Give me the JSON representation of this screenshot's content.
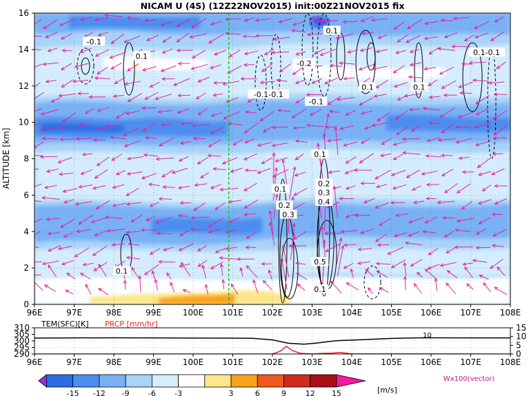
{
  "title": "NICAM U (4S) (12Z22NOV2015) init:00Z21NOV2015 fix",
  "chart_data": [
    {
      "type": "heatmap",
      "title": "NICAM U (4S) (12Z22NOV2015) init:00Z21NOV2015 fix",
      "xlabel": "",
      "ylabel": "ALTITUDE [km]",
      "x_ticks": [
        "96E",
        "97E",
        "98E",
        "99E",
        "100E",
        "101E",
        "102E",
        "103E",
        "104E",
        "105E",
        "106E",
        "107E",
        "108E"
      ],
      "x_range": [
        96,
        108
      ],
      "y_ticks": [
        0,
        2,
        4,
        6,
        8,
        10,
        12,
        14,
        16
      ],
      "y_range": [
        0,
        16
      ],
      "reference_line_x": 100.9,
      "contour_labels": [
        {
          "text": "-0.1",
          "x": 97.5,
          "y": 14.4
        },
        {
          "text": "0.1",
          "x": 98.7,
          "y": 13.6
        },
        {
          "text": "-0.2",
          "x": 102.8,
          "y": 13.2
        },
        {
          "text": "0.1",
          "x": 103.5,
          "y": 15.0
        },
        {
          "text": "0.1",
          "x": 104.4,
          "y": 11.9
        },
        {
          "text": "0.1",
          "x": 105.7,
          "y": 11.9
        },
        {
          "text": "0.1-0.1",
          "x": 107.4,
          "y": 13.8
        },
        {
          "text": "-0.1-0.1",
          "x": 101.9,
          "y": 11.5
        },
        {
          "text": "-0.1",
          "x": 103.1,
          "y": 11.1
        },
        {
          "text": "0.1",
          "x": 103.2,
          "y": 8.2
        },
        {
          "text": "0.2",
          "x": 103.3,
          "y": 6.6
        },
        {
          "text": "0.3",
          "x": 103.3,
          "y": 6.1
        },
        {
          "text": "0.4",
          "x": 103.3,
          "y": 5.6
        },
        {
          "text": "0.1",
          "x": 102.2,
          "y": 6.3
        },
        {
          "text": "0.2",
          "x": 102.3,
          "y": 5.4
        },
        {
          "text": "0.3",
          "x": 102.4,
          "y": 4.9
        },
        {
          "text": "0.1",
          "x": 98.2,
          "y": 1.8
        },
        {
          "text": "0.5",
          "x": 103.2,
          "y": 2.3
        },
        {
          "text": "0.1",
          "x": 103.2,
          "y": 0.8
        }
      ],
      "colorbar": {
        "ticks": [
          "-15",
          "-12",
          "-9",
          "-6",
          "-3",
          "3",
          "6",
          "9",
          "12",
          "15"
        ],
        "colors": [
          "#9b2fdc",
          "#2b6de6",
          "#4d8df0",
          "#79b1f4",
          "#a9d3f8",
          "#d4ecfb",
          "#ffffff",
          "#fde68a",
          "#f9a21b",
          "#ee5a1d",
          "#d12a1f",
          "#ab0d16",
          "#f21d9c"
        ],
        "units": "[m/s]"
      },
      "vector_label": "Wx100(vector)",
      "vector_color": "#e0249e",
      "grid": true
    },
    {
      "type": "line",
      "x_ticks": [
        "96E",
        "97E",
        "98E",
        "99E",
        "100E",
        "101E",
        "102E",
        "103E",
        "104E",
        "105E",
        "106E",
        "107E",
        "108E"
      ],
      "x_range": [
        96,
        108
      ],
      "left_axis_label": "TEM(SFC)[K]",
      "left_ticks": [
        "310",
        "305",
        "300",
        "295",
        "290"
      ],
      "left_range": [
        290,
        310
      ],
      "right_axis_label": "PRCP [mm/hr]",
      "right_ticks": [
        "15",
        "10",
        "5",
        "0"
      ],
      "right_range": [
        0,
        15
      ],
      "curve_label": "10",
      "series": [
        {
          "name": "TEM(SFC)[K]",
          "color": "#000000",
          "x": [
            96,
            97,
            98,
            99,
            100,
            101,
            101.5,
            102,
            102.4,
            102.8,
            103.1,
            103.6,
            104,
            104.6,
            105,
            105.6,
            106,
            107,
            108
          ],
          "y": [
            302.2,
            302.3,
            302.4,
            302.3,
            302.2,
            302.1,
            302.0,
            300.8,
            298.2,
            297.5,
            298.3,
            300.1,
            300.6,
            301.4,
            301.9,
            302.3,
            302.4,
            302.3,
            302.3
          ]
        },
        {
          "name": "PRCP [mm/hr]",
          "color": "#e8251b",
          "x": [
            96,
            101,
            102.0,
            102.2,
            102.35,
            102.5,
            102.7,
            103.0,
            103.2,
            103.5,
            103.7,
            104.0,
            108
          ],
          "y": [
            0,
            0,
            0.0,
            1.6,
            4.4,
            2.0,
            0.4,
            0.0,
            0.3,
            0.5,
            0.9,
            0.1,
            0
          ]
        }
      ],
      "grid": true
    }
  ]
}
